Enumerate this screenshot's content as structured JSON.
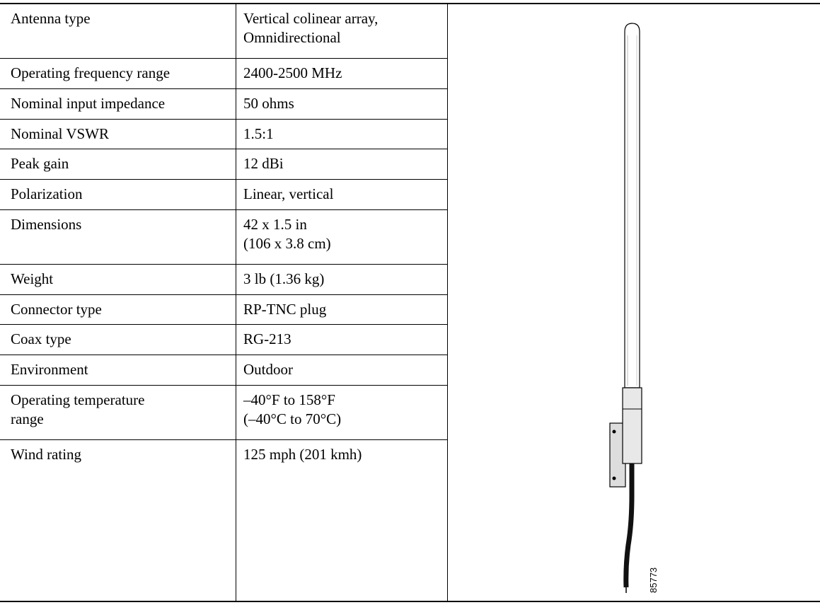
{
  "table": {
    "rows": [
      [
        "Antenna type",
        "Vertical colinear array,\nOmnidirectional"
      ],
      [
        "Operating frequency range",
        "2400-2500 MHz"
      ],
      [
        "Nominal input impedance",
        "50 ohms"
      ],
      [
        "Nominal VSWR",
        "1.5:1"
      ],
      [
        "Peak gain",
        "12 dBi"
      ],
      [
        "Polarization",
        "Linear, vertical"
      ],
      [
        "Dimensions",
        "42 x 1.5 in\n(106 x 3.8 cm)"
      ],
      [
        "Weight",
        "3 lb (1.36 kg)"
      ],
      [
        "Connector type",
        "RP-TNC plug"
      ],
      [
        "Coax type",
        "RG-213"
      ],
      [
        "Environment",
        "Outdoor"
      ],
      [
        "Operating temperature\nrange",
        "–40°F to 158°F\n(–40°C to 70°C)"
      ],
      [
        "Wind rating",
        "125 mph (201 kmh)"
      ]
    ]
  },
  "figure": {
    "label": "85773"
  }
}
